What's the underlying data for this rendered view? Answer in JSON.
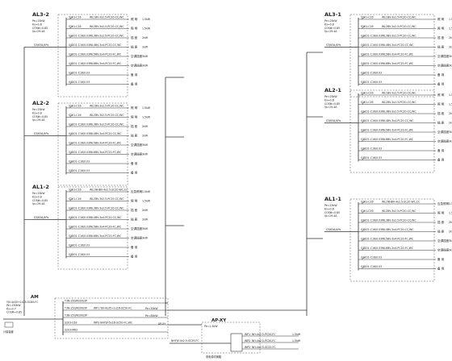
{
  "colors": {
    "line": "#333333",
    "dash": "#555555",
    "background": "#ffffff"
  },
  "panels": [
    {
      "id": "AL3-2",
      "label": "AL3-2",
      "param_lines": [
        "Pe=25kW",
        "Kx=0.8",
        "COSΦ=0.85",
        "Ijs=29.4A"
      ],
      "feeder": "S3/63A/4Px",
      "main_breaker": "S3/250/4P",
      "circuits": [
        {
          "breaker": "S201-C16",
          "code": "WL1",
          "cable": "BV-3x2.5-PC20-CC,WC",
          "load": "照 明",
          "power": "1.5kW"
        },
        {
          "breaker": "S201-C16",
          "code": "WL2",
          "cable": "BV-3x2.5-PC20-CC,WC",
          "load": "照 明",
          "power": "1.5kW"
        },
        {
          "breaker": "GS201-C16/0.03",
          "code": "WL3",
          "cable": "BV-3x2.5-PC20-CC,WC",
          "load": "插 座",
          "power": "2kW"
        },
        {
          "breaker": "GS201-C16/0.03",
          "code": "WL4",
          "cable": "BV-3x4-PC20-CC,WC",
          "load": "插 座",
          "power": "2kW"
        },
        {
          "breaker": "GS201-C16/0.03",
          "code": "WL5",
          "cable": "BV-3x4-PC20-FC,WC",
          "load": "空调插座",
          "power": "3kW"
        },
        {
          "breaker": "GS201-C16/0.03",
          "code": "WL6",
          "cable": "BV-3x4-PC20-FC,WC",
          "load": "空调插座",
          "power": "3kW"
        },
        {
          "breaker": "GS201-C16/0.03",
          "code": "",
          "cable": "",
          "load": "备 用",
          "power": ""
        },
        {
          "breaker": "GS201-C16/0.03",
          "code": "",
          "cable": "",
          "load": "备 用",
          "power": ""
        }
      ]
    },
    {
      "id": "AL2-2",
      "label": "AL2-2",
      "param_lines": [
        "Pe=25kW",
        "Kx=0.8",
        "COSΦ=0.85",
        "Ijs=29.4A"
      ],
      "feeder": "S3/63A/4Px",
      "main_breaker": "S3/250/4P",
      "circuits": [
        {
          "breaker": "S201-C16",
          "code": "WL1",
          "cable": "BV-3x2.5-PC20-CC,WC",
          "load": "照 明",
          "power": "1.5kW"
        },
        {
          "breaker": "S201-C16",
          "code": "WL2",
          "cable": "BV-3x2.5-PC20-CC,WC",
          "load": "照 明",
          "power": "1.5kW"
        },
        {
          "breaker": "GS201-C16/0.03",
          "code": "WL3",
          "cable": "BV-3x2.5-PC20-CC,WC",
          "load": "插 座",
          "power": "2kW"
        },
        {
          "breaker": "GS201-C16/0.03",
          "code": "WL4",
          "cable": "BV-3x4-PC20-CC,WC",
          "load": "插 座",
          "power": "2kW"
        },
        {
          "breaker": "GS201-C16/0.03",
          "code": "WL5",
          "cable": "BV-3x4-PC20-FC,WC",
          "load": "空调插座",
          "power": "3kW"
        },
        {
          "breaker": "GS201-C16/0.03",
          "code": "WL6",
          "cable": "BV-3x4-PC20-FC,WC",
          "load": "空调插座",
          "power": "3kW"
        },
        {
          "breaker": "GS201-C16/0.03",
          "code": "",
          "cable": "",
          "load": "备 用",
          "power": ""
        },
        {
          "breaker": "GS201-C16/0.03",
          "code": "",
          "cable": "",
          "load": "备 用",
          "power": ""
        }
      ]
    },
    {
      "id": "AL1-2",
      "label": "AL1-2",
      "param_lines": [
        "Pe=25kW",
        "Kx=0.8",
        "COSΦ=0.85",
        "Ijs=29.4A"
      ],
      "feeder": "S3/63A/4Px",
      "main_breaker": "S3/250/4P",
      "circuits": [
        {
          "breaker": "S201-C16",
          "code": "WL1",
          "cable": "NHBV-4x2.5-SC20-WC,CC",
          "load": "应急照明",
          "power": "1.5kW"
        },
        {
          "breaker": "S201-C16",
          "code": "WL2",
          "cable": "BV-3x2.5-PC20-CC,WC",
          "load": "照 明",
          "power": "1.5kW"
        },
        {
          "breaker": "GS201-C16/0.03",
          "code": "WL3",
          "cable": "BV-3x2.5-PC20-CC,WC",
          "load": "插 座",
          "power": "2kW"
        },
        {
          "breaker": "GS201-C16/0.03",
          "code": "WL4",
          "cable": "BV-3x4-PC20-CC,WC",
          "load": "插 座",
          "power": "2kW"
        },
        {
          "breaker": "GS201-C16/0.03",
          "code": "WL5",
          "cable": "BV-3x4-PC20-FC,WC",
          "load": "空调插座",
          "power": "3kW"
        },
        {
          "breaker": "GS201-C16/0.03",
          "code": "WL6",
          "cable": "BV-3x4-PC20-FC,WC",
          "load": "空调插座",
          "power": "3kW"
        },
        {
          "breaker": "GS201-C16/0.03",
          "code": "",
          "cable": "",
          "load": "备 用",
          "power": ""
        },
        {
          "breaker": "GS201-C16/0.03",
          "code": "",
          "cable": "",
          "load": "备 用",
          "power": ""
        }
      ]
    },
    {
      "id": "AL3-1",
      "label": "AL3-1",
      "param_lines": [
        "Pe=25kW",
        "Kx=0.8",
        "COSΦ=0.85",
        "Ijs=29.4A"
      ],
      "feeder": "S3/63A/4Px",
      "main_breaker": "S3/250/4P",
      "circuits": [
        {
          "breaker": "S201-C16",
          "code": "WL1",
          "cable": "BV-3x2.5-PC20-CC,WC",
          "load": "照 明",
          "power": "1.5kW"
        },
        {
          "breaker": "S201-C16",
          "code": "WL2",
          "cable": "BV-3x2.5-PC20-CC,WC",
          "load": "照 明",
          "power": "1.5kW"
        },
        {
          "breaker": "GS201-C16/0.03",
          "code": "WL3",
          "cable": "BV-3x2.5-PC20-CC,WC",
          "load": "插 座",
          "power": "2kW"
        },
        {
          "breaker": "GS201-C16/0.03",
          "code": "WL4",
          "cable": "BV-3x4-PC20-CC,WC",
          "load": "插 座",
          "power": "2kW"
        },
        {
          "breaker": "GS201-C16/0.03",
          "code": "WL5",
          "cable": "BV-3x4-PC20-FC,WC",
          "load": "空调插座",
          "power": "3kW"
        },
        {
          "breaker": "GS201-C16/0.03",
          "code": "WL6",
          "cable": "BV-3x4-PC20-FC,WC",
          "load": "空调插座",
          "power": "3kW"
        },
        {
          "breaker": "GS201-C16/0.03",
          "code": "",
          "cable": "",
          "load": "备 用",
          "power": ""
        },
        {
          "breaker": "GS201-C16/0.03",
          "code": "",
          "cable": "",
          "load": "备 用",
          "power": ""
        }
      ]
    },
    {
      "id": "AL2-1",
      "label": "AL2-1",
      "param_lines": [
        "Pe=25kW",
        "Kx=0.8",
        "COSΦ=0.85",
        "Ijs=29.4A"
      ],
      "feeder": "S3/63A/4Px",
      "main_breaker": "S3/250/4P",
      "circuits": [
        {
          "breaker": "S201-C16",
          "code": "WL1",
          "cable": "BV-3x2.5-PC20-CC,WC",
          "load": "照 明",
          "power": "1.5kW"
        },
        {
          "breaker": "S201-C16",
          "code": "WL2",
          "cable": "BV-3x2.5-PC20-CC,WC",
          "load": "照 明",
          "power": "1.5kW"
        },
        {
          "breaker": "GS201-C16/0.03",
          "code": "WL3",
          "cable": "BV-3x2.5-PC20-CC,WC",
          "load": "插 座",
          "power": "2kW"
        },
        {
          "breaker": "GS201-C16/0.03",
          "code": "WL4",
          "cable": "BV-3x4-PC20-CC,WC",
          "load": "插 座",
          "power": "2kW"
        },
        {
          "breaker": "GS201-C16/0.03",
          "code": "WL5",
          "cable": "BV-3x4-PC20-FC,WC",
          "load": "空调插座",
          "power": "3kW"
        },
        {
          "breaker": "GS201-C16/0.03",
          "code": "WL6",
          "cable": "BV-3x4-PC20-FC,WC",
          "load": "空调插座",
          "power": "3kW"
        },
        {
          "breaker": "GS201-C16/0.03",
          "code": "",
          "cable": "",
          "load": "备 用",
          "power": ""
        },
        {
          "breaker": "GS201-C16/0.03",
          "code": "",
          "cable": "",
          "load": "备 用",
          "power": ""
        }
      ]
    },
    {
      "id": "AL1-1",
      "label": "AL1-1",
      "param_lines": [
        "Pe=25kW",
        "Kx=0.8",
        "COSΦ=0.85",
        "Ijs=29.4A"
      ],
      "feeder": "S3/63A/4Px",
      "main_breaker": "S3/250/4P",
      "circuits": [
        {
          "breaker": "S201-C16",
          "code": "WL1",
          "cable": "NHBV-4x2.5-SC20-WC,CC",
          "load": "应急照明",
          "power": "1.5kW"
        },
        {
          "breaker": "S201-C16",
          "code": "WL2",
          "cable": "BV-3x2.5-PC20-CC,WC",
          "load": "照 明",
          "power": "1.5kW"
        },
        {
          "breaker": "GS201-C16/0.03",
          "code": "WL3",
          "cable": "BV-3x2.5-PC20-CC,WC",
          "load": "插 座",
          "power": "2kW"
        },
        {
          "breaker": "GS201-C16/0.03",
          "code": "WL4",
          "cable": "BV-3x4-PC20-CC,WC",
          "load": "插 座",
          "power": "2kW"
        },
        {
          "breaker": "GS201-C16/0.03",
          "code": "WL5",
          "cable": "BV-3x4-PC20-FC,WC",
          "load": "空调插座",
          "power": "3kW"
        },
        {
          "breaker": "GS201-C16/0.03",
          "code": "WL6",
          "cable": "BV-3x4-PC20-FC,WC",
          "load": "空调插座",
          "power": "3kW"
        },
        {
          "breaker": "GS201-C16/0.03",
          "code": "",
          "cable": "",
          "load": "备 用",
          "power": ""
        },
        {
          "breaker": "GS201-C16/0.03",
          "code": "",
          "cable": "",
          "load": "备 用",
          "power": ""
        }
      ]
    }
  ],
  "am": {
    "label": "AM",
    "incoming": [
      "YJV-4x50+1x25-SC80-FC",
      "Pe=150kW",
      "Kx=0.7",
      "COSΦ=0.85"
    ],
    "meter_note": "计量装置",
    "rows": [
      {
        "breaker": "T3N-250/R200/3P",
        "text": ""
      },
      {
        "breaker": "T3N-250/R200/3P",
        "text": "WP1 YJV-4x35+1x16-SC50-FC"
      },
      {
        "breaker": "T3N-250/R200/3P",
        "text": ""
      },
      {
        "breaker": "S203-C63",
        "text": "WPS NHYJV-5x16-SC50-FC,WC"
      },
      {
        "breaker": "S203-M63",
        "text": ""
      }
    ],
    "row_tags": [
      "Pe=30kW",
      "Pe=85kW",
      "AP-XY"
    ]
  },
  "apxy": {
    "label": "AP-XY",
    "params": [
      "Pe=1.5kW"
    ],
    "incoming": "NHYJV-4x2.5-SC25-FC",
    "rows": [
      {
        "code": "WP1",
        "text": "NH-4x2.5-PC20-FC",
        "power": "1.5kW"
      },
      {
        "code": "WP2",
        "text": "NH-4x2.5-PC20-FC",
        "power": "1.5kW"
      },
      {
        "code": "WP3",
        "text": "NH-4x2.5-SC25-FC",
        "power": ""
      }
    ],
    "bottom_note": "双电源切换箱"
  }
}
